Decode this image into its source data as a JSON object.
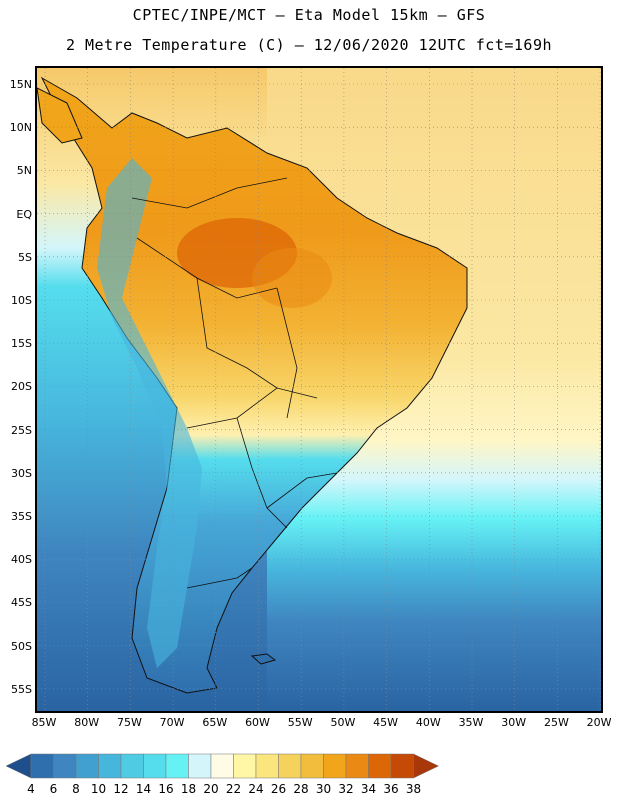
{
  "header": {
    "line1": "CPTEC/INPE/MCT –  Eta Model 15km – GFS",
    "line2": "2 Metre Temperature (C) – 12/06/2020 12UTC fct=169h"
  },
  "axes": {
    "lat_labels": [
      "15N",
      "10N",
      "5N",
      "EQ",
      "5S",
      "10S",
      "15S",
      "20S",
      "25S",
      "30S",
      "35S",
      "40S",
      "45S",
      "50S",
      "55S"
    ],
    "lon_labels": [
      "85W",
      "80W",
      "75W",
      "70W",
      "65W",
      "60W",
      "55W",
      "50W",
      "45W",
      "40W",
      "35W",
      "30W",
      "25W",
      "20W"
    ]
  },
  "colorbar": {
    "labels": [
      "4",
      "6",
      "8",
      "10",
      "12",
      "14",
      "16",
      "18",
      "20",
      "22",
      "24",
      "26",
      "28",
      "30",
      "32",
      "34",
      "36",
      "38"
    ],
    "colors": [
      "#1f4e8c",
      "#2f6fad",
      "#3f86c0",
      "#41a0cf",
      "#47b6dd",
      "#4fcbe4",
      "#55dded",
      "#66f2f5",
      "#d4f6fb",
      "#fffbe4",
      "#fff7a6",
      "#fbe67d",
      "#f5d25c",
      "#f2bd3c",
      "#f1a51a",
      "#ea8a14",
      "#dd6607",
      "#c44a05",
      "#a8380a"
    ]
  },
  "map": {
    "ocean_colors": {
      "tropical": "#fbdf84",
      "subtropical": "#fff6c6",
      "mid": "#55dded",
      "deep": "#2f6fad"
    },
    "land_colors": {
      "hot": "#e0730d",
      "warm": "#f1a51a",
      "mild": "#f5d25c",
      "cool": "#47b6dd",
      "cold": "#2f6fad"
    }
  }
}
